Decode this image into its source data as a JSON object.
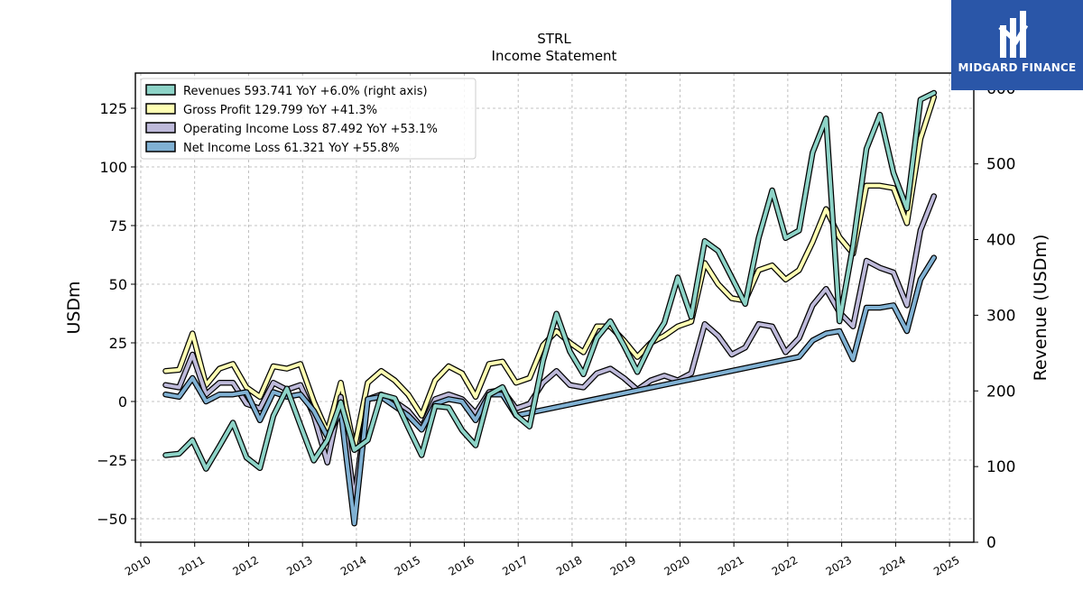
{
  "logo": {
    "text": "MIDGARD FINANCE",
    "background": "#2a56a8"
  },
  "chart_data": {
    "type": "line",
    "title": "STRL",
    "subtitle": "Income Statement",
    "ylabel_left": "USDm",
    "ylabel_right": "Revenue (USDm)",
    "ylim_left": [
      -60,
      140
    ],
    "ylim_right": [
      0,
      620
    ],
    "left_ticks": [
      -50,
      -25,
      0,
      25,
      50,
      75,
      100,
      125
    ],
    "right_ticks": [
      0,
      100,
      200,
      300,
      400,
      500,
      600
    ],
    "x_ticks": [
      "2010",
      "2011",
      "2012",
      "2013",
      "2014",
      "2015",
      "2016",
      "2017",
      "2018",
      "2019",
      "2020",
      "2021",
      "2022",
      "2023",
      "2024",
      "2025"
    ],
    "grid": true,
    "legend_position": "top-left",
    "series": [
      {
        "name": "Revenues",
        "legend": "Revenues  593.741 YoY +6.0% (right axis)",
        "axis": "right",
        "color": "#8dd3c7",
        "points": [
          [
            2010.46,
            115
          ],
          [
            2010.71,
            117
          ],
          [
            2010.96,
            135
          ],
          [
            2011.21,
            97
          ],
          [
            2011.46,
            127
          ],
          [
            2011.71,
            158
          ],
          [
            2011.96,
            112
          ],
          [
            2012.21,
            98
          ],
          [
            2012.46,
            167
          ],
          [
            2012.71,
            203
          ],
          [
            2012.96,
            155
          ],
          [
            2013.21,
            108
          ],
          [
            2013.46,
            135
          ],
          [
            2013.71,
            185
          ],
          [
            2013.96,
            122
          ],
          [
            2014.21,
            135
          ],
          [
            2014.46,
            195
          ],
          [
            2014.71,
            190
          ],
          [
            2014.96,
            152
          ],
          [
            2015.21,
            115
          ],
          [
            2015.46,
            180
          ],
          [
            2015.71,
            178
          ],
          [
            2015.96,
            148
          ],
          [
            2016.21,
            128
          ],
          [
            2016.46,
            195
          ],
          [
            2016.71,
            205
          ],
          [
            2016.96,
            168
          ],
          [
            2017.21,
            153
          ],
          [
            2017.46,
            240
          ],
          [
            2017.71,
            302
          ],
          [
            2017.96,
            252
          ],
          [
            2018.21,
            222
          ],
          [
            2018.46,
            270
          ],
          [
            2018.71,
            292
          ],
          [
            2018.96,
            260
          ],
          [
            2019.21,
            225
          ],
          [
            2019.46,
            262
          ],
          [
            2019.71,
            290
          ],
          [
            2019.96,
            350
          ],
          [
            2020.21,
            298
          ],
          [
            2020.46,
            398
          ],
          [
            2020.71,
            385
          ],
          [
            2020.96,
            350
          ],
          [
            2021.21,
            315
          ],
          [
            2021.46,
            402
          ],
          [
            2021.71,
            465
          ],
          [
            2021.96,
            402
          ],
          [
            2022.21,
            412
          ],
          [
            2022.46,
            515
          ],
          [
            2022.71,
            560
          ],
          [
            2022.96,
            292
          ],
          [
            2023.21,
            392
          ],
          [
            2023.46,
            520
          ],
          [
            2023.71,
            565
          ],
          [
            2023.96,
            488
          ],
          [
            2024.21,
            441
          ],
          [
            2024.46,
            585
          ],
          [
            2024.71,
            593.741
          ]
        ]
      },
      {
        "name": "Gross Profit",
        "legend": "Gross Profit  129.799 YoY +41.3%",
        "axis": "left",
        "color": "#ffffb3",
        "points": [
          [
            2010.46,
            13
          ],
          [
            2010.71,
            13.5
          ],
          [
            2010.96,
            29
          ],
          [
            2011.21,
            7
          ],
          [
            2011.46,
            14
          ],
          [
            2011.71,
            16
          ],
          [
            2011.96,
            6
          ],
          [
            2012.21,
            2
          ],
          [
            2012.46,
            15
          ],
          [
            2012.71,
            14
          ],
          [
            2012.96,
            16
          ],
          [
            2013.21,
            0
          ],
          [
            2013.46,
            -13
          ],
          [
            2013.71,
            8
          ],
          [
            2013.96,
            -20
          ],
          [
            2014.21,
            8
          ],
          [
            2014.46,
            13
          ],
          [
            2014.71,
            9
          ],
          [
            2014.96,
            3
          ],
          [
            2015.21,
            -6
          ],
          [
            2015.46,
            9
          ],
          [
            2015.71,
            15
          ],
          [
            2015.96,
            12
          ],
          [
            2016.21,
            2
          ],
          [
            2016.46,
            16
          ],
          [
            2016.71,
            17
          ],
          [
            2016.96,
            8
          ],
          [
            2017.21,
            10
          ],
          [
            2017.46,
            24
          ],
          [
            2017.71,
            30
          ],
          [
            2017.96,
            25
          ],
          [
            2018.21,
            21
          ],
          [
            2018.46,
            32
          ],
          [
            2018.71,
            32
          ],
          [
            2018.96,
            26
          ],
          [
            2019.21,
            19
          ],
          [
            2019.46,
            25
          ],
          [
            2019.71,
            28
          ],
          [
            2019.96,
            32
          ],
          [
            2020.21,
            34
          ],
          [
            2020.46,
            59
          ],
          [
            2020.71,
            50
          ],
          [
            2020.96,
            44
          ],
          [
            2021.21,
            43
          ],
          [
            2021.46,
            56
          ],
          [
            2021.71,
            58
          ],
          [
            2021.96,
            52
          ],
          [
            2022.21,
            56
          ],
          [
            2022.46,
            68
          ],
          [
            2022.71,
            82
          ],
          [
            2022.96,
            70
          ],
          [
            2023.21,
            63
          ],
          [
            2023.46,
            92
          ],
          [
            2023.71,
            92
          ],
          [
            2023.96,
            91
          ],
          [
            2024.21,
            76
          ],
          [
            2024.46,
            112
          ],
          [
            2024.71,
            129.799
          ]
        ]
      },
      {
        "name": "Operating Income Loss",
        "legend": "Operating Income Loss  87.492 YoY +53.1%",
        "axis": "left",
        "color": "#bebada",
        "points": [
          [
            2010.46,
            7
          ],
          [
            2010.71,
            6
          ],
          [
            2010.96,
            20
          ],
          [
            2011.21,
            3
          ],
          [
            2011.46,
            8
          ],
          [
            2011.71,
            8
          ],
          [
            2011.96,
            -1
          ],
          [
            2012.21,
            -3
          ],
          [
            2012.46,
            8
          ],
          [
            2012.71,
            5
          ],
          [
            2012.96,
            7
          ],
          [
            2013.21,
            -6
          ],
          [
            2013.46,
            -26
          ],
          [
            2013.71,
            2
          ],
          [
            2013.96,
            -42
          ],
          [
            2014.21,
            1
          ],
          [
            2014.46,
            3
          ],
          [
            2014.71,
            0
          ],
          [
            2014.96,
            -4
          ],
          [
            2015.21,
            -11
          ],
          [
            2015.46,
            1
          ],
          [
            2015.71,
            3
          ],
          [
            2015.96,
            1
          ],
          [
            2016.21,
            -5
          ],
          [
            2016.46,
            4
          ],
          [
            2016.71,
            5
          ],
          [
            2016.96,
            -3
          ],
          [
            2017.21,
            -1
          ],
          [
            2017.46,
            8
          ],
          [
            2017.71,
            13
          ],
          [
            2017.96,
            7
          ],
          [
            2018.21,
            6
          ],
          [
            2018.46,
            12
          ],
          [
            2018.71,
            14
          ],
          [
            2018.96,
            10
          ],
          [
            2019.21,
            5
          ],
          [
            2019.46,
            9
          ],
          [
            2019.71,
            11
          ],
          [
            2019.96,
            9
          ],
          [
            2020.21,
            12
          ],
          [
            2020.46,
            33
          ],
          [
            2020.71,
            28
          ],
          [
            2020.96,
            20
          ],
          [
            2021.21,
            23
          ],
          [
            2021.46,
            33
          ],
          [
            2021.71,
            32
          ],
          [
            2021.96,
            21
          ],
          [
            2022.21,
            27
          ],
          [
            2022.46,
            41
          ],
          [
            2022.71,
            48
          ],
          [
            2022.96,
            38
          ],
          [
            2023.21,
            32
          ],
          [
            2023.46,
            60
          ],
          [
            2023.71,
            57
          ],
          [
            2023.96,
            55
          ],
          [
            2024.21,
            41
          ],
          [
            2024.46,
            73
          ],
          [
            2024.71,
            87.492
          ]
        ]
      },
      {
        "name": "Net Income Loss",
        "legend": "Net Income Loss  61.321 YoY +55.8%",
        "axis": "left",
        "color": "#80b1d3",
        "points": [
          [
            2010.46,
            3
          ],
          [
            2010.71,
            2
          ],
          [
            2010.96,
            10
          ],
          [
            2011.21,
            0
          ],
          [
            2011.46,
            3
          ],
          [
            2011.71,
            3
          ],
          [
            2011.96,
            4
          ],
          [
            2012.21,
            -8
          ],
          [
            2012.46,
            4
          ],
          [
            2012.71,
            2
          ],
          [
            2012.96,
            3
          ],
          [
            2013.21,
            -4
          ],
          [
            2013.46,
            -15
          ],
          [
            2013.71,
            -4
          ],
          [
            2013.96,
            -52
          ],
          [
            2014.21,
            1
          ],
          [
            2014.46,
            2
          ],
          [
            2014.71,
            -2
          ],
          [
            2014.96,
            -6
          ],
          [
            2015.21,
            -12
          ],
          [
            2015.46,
            -1
          ],
          [
            2015.71,
            1
          ],
          [
            2015.96,
            0
          ],
          [
            2016.21,
            -8
          ],
          [
            2016.46,
            3
          ],
          [
            2016.71,
            3
          ],
          [
            2016.96,
            -6
          ],
          [
            2022.21,
            19
          ],
          [
            2022.46,
            26
          ],
          [
            2022.71,
            29
          ],
          [
            2022.96,
            30
          ],
          [
            2023.21,
            18
          ],
          [
            2023.46,
            40
          ],
          [
            2023.71,
            40
          ],
          [
            2023.96,
            41
          ],
          [
            2024.21,
            30
          ],
          [
            2024.46,
            52
          ],
          [
            2024.71,
            61.321
          ]
        ]
      }
    ]
  }
}
